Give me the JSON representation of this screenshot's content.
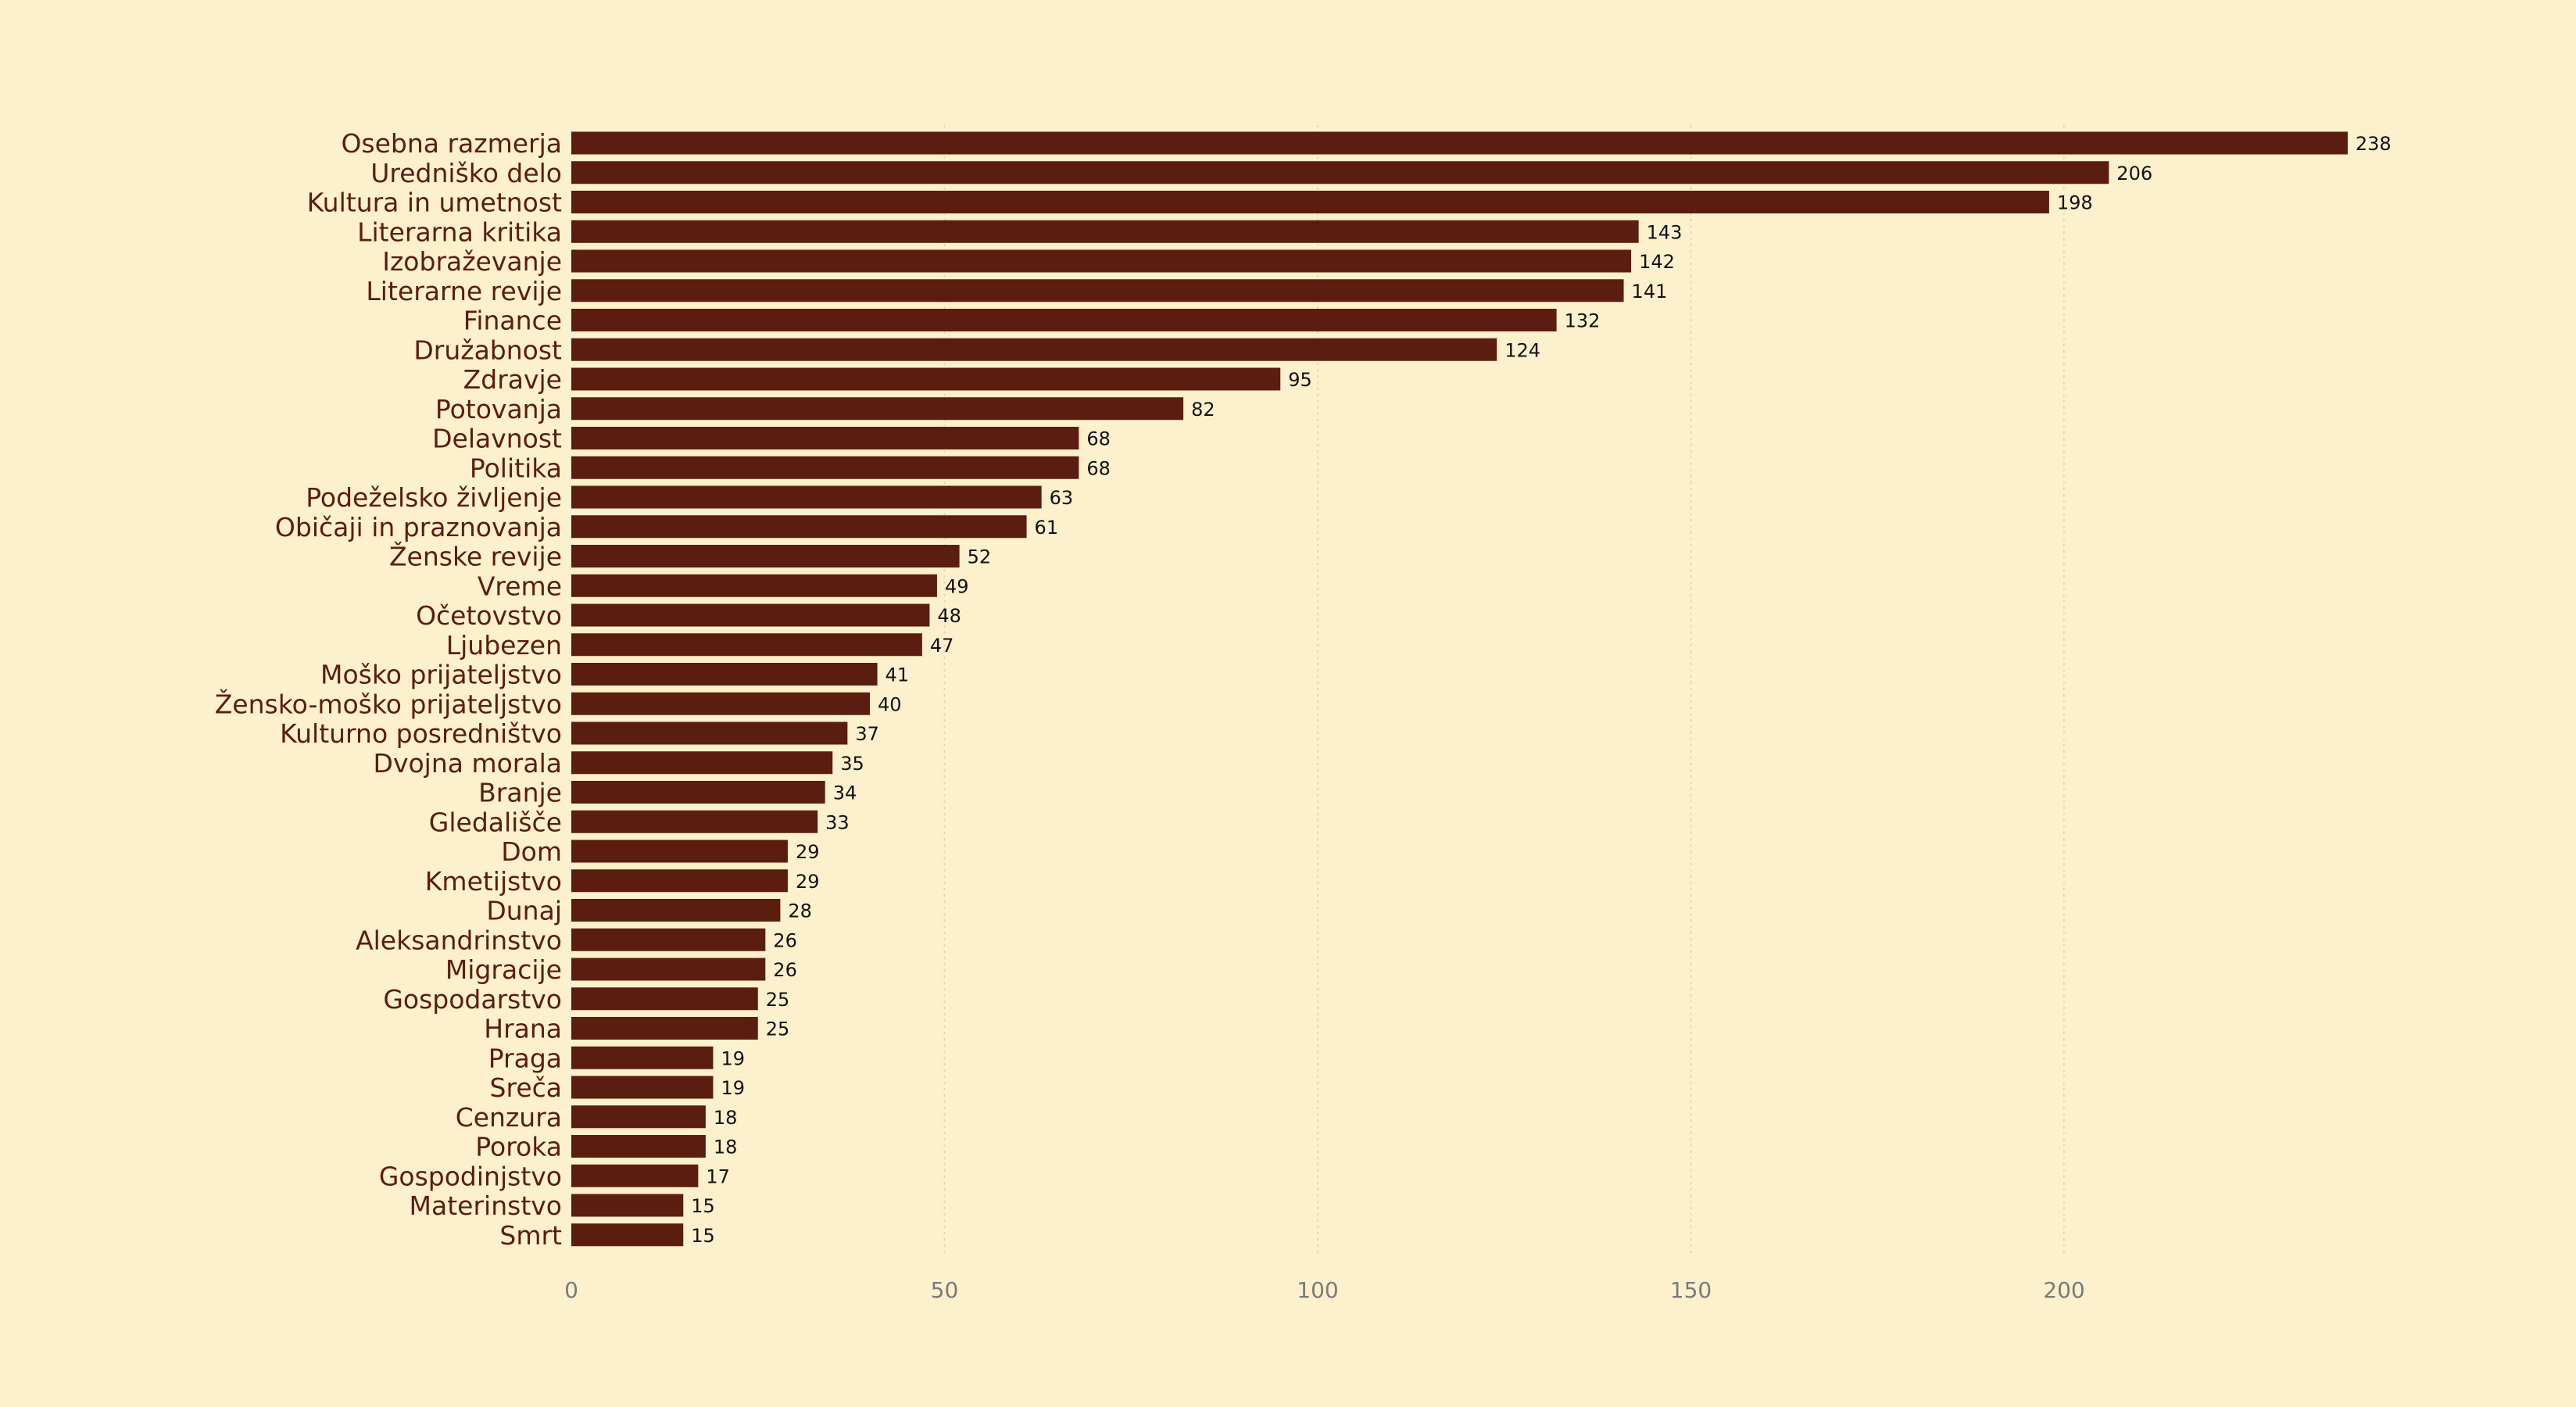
{
  "chart_data": {
    "type": "bar",
    "orientation": "horizontal",
    "title": "",
    "xlabel": "",
    "ylabel": "",
    "categories": [
      "Osebna razmerja",
      "Uredniško delo",
      "Kultura in umetnost",
      "Literarna kritika",
      "Izobraževanje",
      "Literarne revije",
      "Finance",
      "Družabnost",
      "Zdravje",
      "Potovanja",
      "Delavnost",
      "Politika",
      "Podeželsko življenje",
      "Običaji in praznovanja",
      "Ženske revije",
      "Vreme",
      "Očetovstvo",
      "Ljubezen",
      "Moško prijateljstvo",
      "Žensko-moško prijateljstvo",
      "Kulturno posredništvo",
      "Dvojna morala",
      "Branje",
      "Gledališče",
      "Dom",
      "Kmetijstvo",
      "Dunaj",
      "Aleksandrinstvo",
      "Migracije",
      "Gospodarstvo",
      "Hrana",
      "Praga",
      "Sreča",
      "Cenzura",
      "Poroka",
      "Gospodinjstvo",
      "Materinstvo",
      "Smrt"
    ],
    "values": [
      238,
      206,
      198,
      143,
      142,
      141,
      132,
      124,
      95,
      82,
      68,
      68,
      63,
      61,
      52,
      49,
      48,
      47,
      41,
      40,
      37,
      35,
      34,
      33,
      29,
      29,
      28,
      26,
      26,
      25,
      25,
      19,
      19,
      18,
      18,
      17,
      15,
      15
    ],
    "xlim": [
      0,
      240
    ],
    "xticks": [
      0,
      50,
      100,
      150,
      200
    ],
    "grid": "vertical-dotted",
    "legend": "none"
  },
  "colors": {
    "background": "#fdf0cd",
    "bar": "#5a1d10",
    "category_text": "#5a1d10",
    "value_text": "#111111",
    "tick_text": "#7a7a7a",
    "grid": "#e6d9b5"
  }
}
